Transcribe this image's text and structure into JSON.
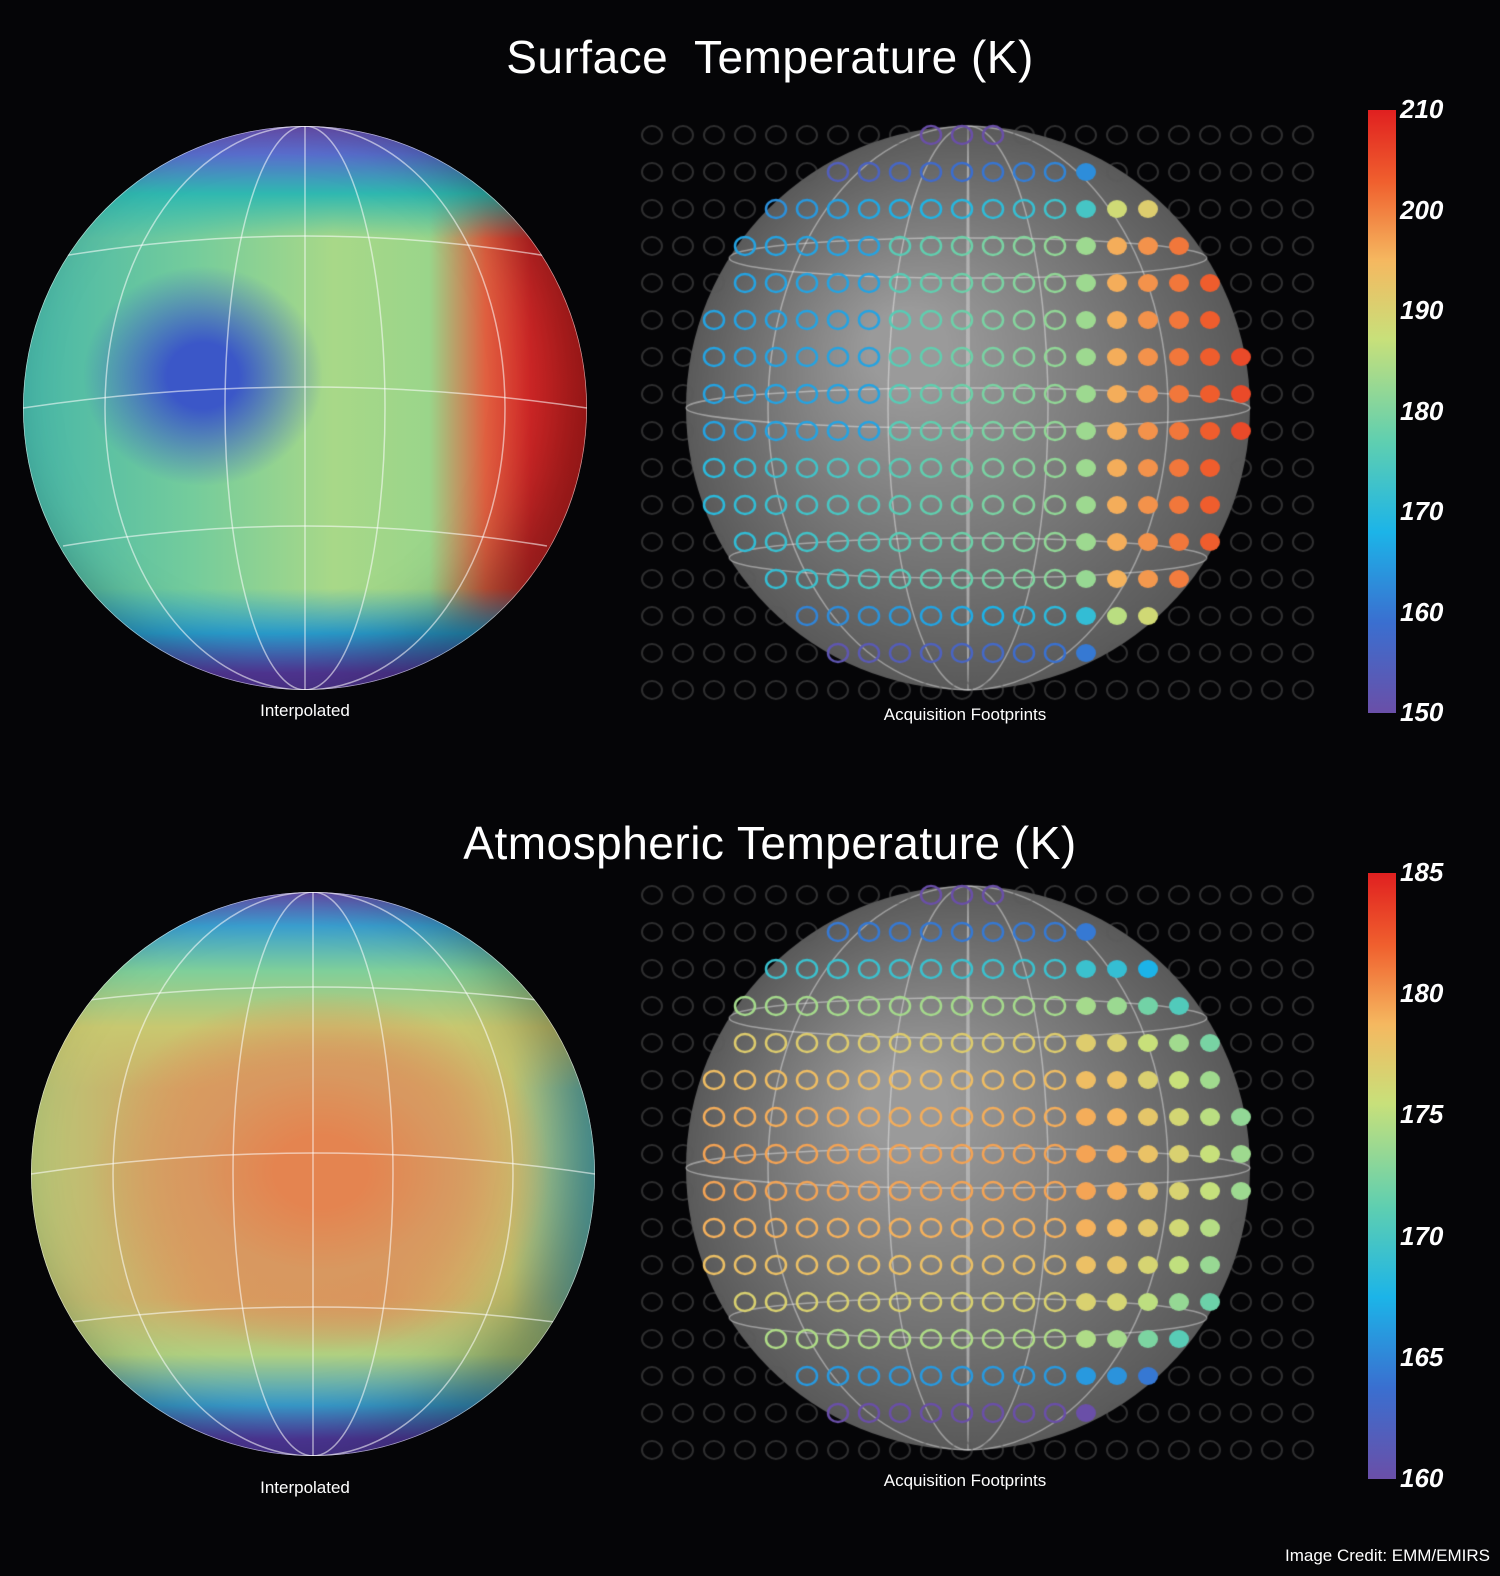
{
  "panels": [
    {
      "title": "Surface  Temperature (K)",
      "left_caption": "Interpolated",
      "right_caption": "Acquisition Footprints",
      "colorbar": {
        "min": 150,
        "max": 210,
        "ticks": [
          "210",
          "200",
          "190",
          "180",
          "170",
          "160",
          "150"
        ]
      }
    },
    {
      "title": "Atmospheric Temperature (K)",
      "left_caption": "Interpolated",
      "right_caption": "Acquisition Footprints",
      "colorbar": {
        "min": 160,
        "max": 185,
        "ticks": [
          "185",
          "180",
          "175",
          "170",
          "165",
          "160"
        ]
      }
    }
  ],
  "colormap": [
    "#6a4fa8",
    "#3a6fd0",
    "#1cb4e8",
    "#5fcfb0",
    "#c8e07a",
    "#f5b860",
    "#f0602e",
    "#e02020"
  ],
  "credit": "Image Credit: EMM/EMIRS"
}
